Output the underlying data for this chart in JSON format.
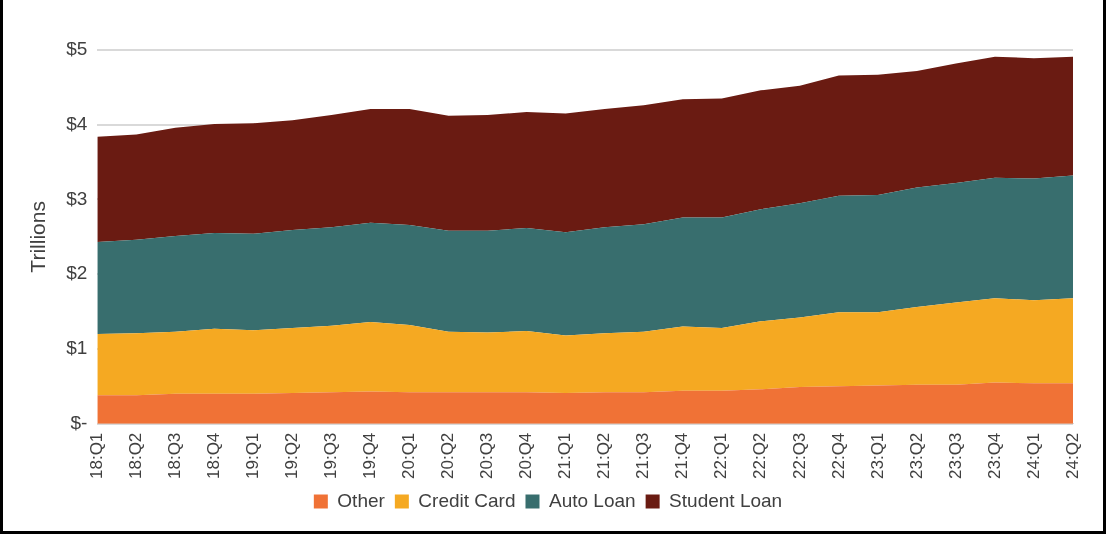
{
  "chart_data": {
    "type": "area",
    "stacked": true,
    "ylabel": "Trillions",
    "categories": [
      "18:Q1",
      "18:Q2",
      "18:Q3",
      "18:Q4",
      "19:Q1",
      "19:Q2",
      "19:Q3",
      "19:Q4",
      "20:Q1",
      "20:Q2",
      "20:Q3",
      "20:Q4",
      "21:Q1",
      "21:Q2",
      "21:Q3",
      "21:Q4",
      "22:Q1",
      "22:Q2",
      "22:Q3",
      "22:Q4",
      "23:Q1",
      "23:Q2",
      "23:Q3",
      "23:Q4",
      "24:Q1",
      "24:Q2"
    ],
    "series": [
      {
        "name": "Other",
        "color": "#f07236",
        "values": [
          0.38,
          0.38,
          0.4,
          0.4,
          0.4,
          0.41,
          0.42,
          0.43,
          0.42,
          0.42,
          0.42,
          0.42,
          0.41,
          0.42,
          0.42,
          0.44,
          0.44,
          0.46,
          0.49,
          0.5,
          0.51,
          0.52,
          0.52,
          0.55,
          0.54,
          0.54
        ]
      },
      {
        "name": "Credit Card",
        "color": "#f5a922",
        "values": [
          0.82,
          0.83,
          0.83,
          0.87,
          0.85,
          0.87,
          0.89,
          0.93,
          0.9,
          0.81,
          0.8,
          0.82,
          0.77,
          0.79,
          0.81,
          0.86,
          0.84,
          0.91,
          0.93,
          0.99,
          0.98,
          1.04,
          1.1,
          1.13,
          1.11,
          1.14
        ]
      },
      {
        "name": "Auto Loan",
        "color": "#386e6e",
        "values": [
          1.23,
          1.25,
          1.28,
          1.28,
          1.29,
          1.31,
          1.32,
          1.33,
          1.34,
          1.35,
          1.36,
          1.38,
          1.38,
          1.42,
          1.44,
          1.46,
          1.48,
          1.5,
          1.53,
          1.56,
          1.57,
          1.6,
          1.6,
          1.61,
          1.63,
          1.64
        ]
      },
      {
        "name": "Student Loan",
        "color": "#6a1b12",
        "values": [
          1.41,
          1.41,
          1.45,
          1.46,
          1.48,
          1.47,
          1.5,
          1.52,
          1.55,
          1.54,
          1.55,
          1.55,
          1.59,
          1.58,
          1.59,
          1.58,
          1.59,
          1.59,
          1.57,
          1.61,
          1.61,
          1.56,
          1.6,
          1.62,
          1.61,
          1.59
        ]
      }
    ],
    "ylim": [
      0,
      5
    ],
    "yticks": [
      {
        "value": 0,
        "label": "$-"
      },
      {
        "value": 1,
        "label": "$1"
      },
      {
        "value": 2,
        "label": "$2"
      },
      {
        "value": 3,
        "label": "$3"
      },
      {
        "value": 4,
        "label": "$4"
      },
      {
        "value": 5,
        "label": "$5"
      }
    ],
    "grid": "y",
    "legend": "bottom"
  }
}
